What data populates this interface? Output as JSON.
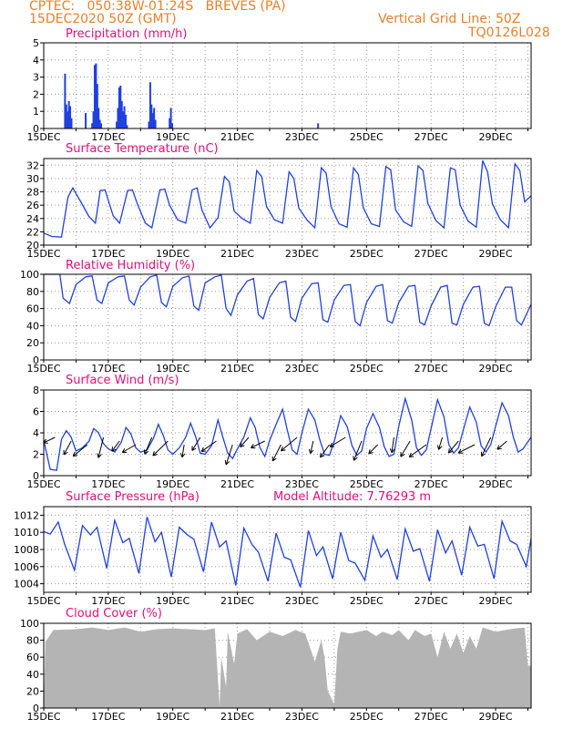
{
  "header": {
    "line1": "CPTEC:   050:38W-01:24S   BREVES (PA)",
    "line2": "15DEC2020 50Z (GMT)",
    "grid_note": "Vertical Grid Line: 50Z",
    "code": "TQ0126L028"
  },
  "colors": {
    "title": "#e0107a",
    "header": "#e8802a",
    "line": "#2040e0",
    "cloud": "#b4b4b4",
    "grid": "#9a9a9a"
  },
  "chart_data": [
    {
      "id": "precip",
      "type": "bar",
      "title": "Precipitation (mm/h)",
      "ylim": [
        0,
        5
      ],
      "yticks": [
        0,
        1,
        2,
        3,
        4,
        5
      ],
      "xticklabels": [
        "15DEC",
        "17DEC",
        "19DEC",
        "21DEC",
        "23DEC",
        "25DEC",
        "27DEC",
        "29DEC"
      ],
      "x": [
        0.66,
        0.7,
        0.74,
        0.78,
        0.82,
        0.86,
        1.3,
        1.5,
        1.54,
        1.58,
        1.62,
        1.66,
        1.7,
        1.74,
        1.78,
        2.26,
        2.3,
        2.34,
        2.38,
        2.42,
        2.46,
        2.5,
        2.54,
        2.58,
        3.26,
        3.3,
        3.34,
        3.38,
        3.42,
        3.46,
        3.9,
        3.94,
        3.98,
        8.5
      ],
      "values": [
        3.2,
        1.4,
        1.0,
        1.6,
        1.3,
        0.6,
        0.9,
        0.3,
        1.0,
        3.7,
        3.8,
        2.6,
        1.2,
        0.5,
        0.3,
        0.4,
        1.2,
        2.4,
        2.5,
        1.6,
        1.0,
        1.3,
        0.8,
        0.2,
        0.4,
        2.7,
        1.4,
        0.9,
        1.2,
        0.5,
        0.6,
        1.2,
        0.3,
        0.3
      ]
    },
    {
      "id": "temp",
      "type": "line",
      "title": "Surface Temperature (nC)",
      "ylim": [
        20,
        33
      ],
      "yticks": [
        20,
        22,
        24,
        26,
        28,
        30,
        32
      ],
      "xticklabels": [
        "15DEC",
        "17DEC",
        "19DEC",
        "21DEC",
        "23DEC",
        "25DEC",
        "27DEC",
        "29DEC"
      ],
      "x": [
        0.0,
        0.25,
        0.55,
        0.75,
        0.9,
        1.15,
        1.4,
        1.6,
        1.75,
        1.9,
        2.15,
        2.35,
        2.6,
        2.75,
        2.9,
        3.15,
        3.35,
        3.6,
        3.75,
        3.9,
        4.15,
        4.4,
        4.6,
        4.75,
        4.9,
        5.15,
        5.4,
        5.6,
        5.75,
        5.9,
        6.15,
        6.4,
        6.6,
        6.75,
        6.9,
        7.15,
        7.4,
        7.6,
        7.75,
        7.9,
        8.15,
        8.4,
        8.6,
        8.75,
        8.9,
        9.15,
        9.4,
        9.6,
        9.75,
        9.9,
        10.15,
        10.4,
        10.6,
        10.75,
        10.9,
        11.15,
        11.4,
        11.6,
        11.75,
        11.9,
        12.15,
        12.4,
        12.6,
        12.75,
        12.9,
        13.15,
        13.4,
        13.6,
        13.75,
        13.9,
        14.15,
        14.4,
        14.6,
        14.75,
        14.9,
        15.1
      ],
      "values": [
        21.8,
        21.3,
        21.2,
        27.2,
        28.6,
        26.5,
        24.3,
        23.3,
        28.2,
        28.3,
        24.4,
        23.3,
        28.2,
        28.3,
        26.2,
        23.3,
        22.6,
        28.3,
        28.4,
        26.0,
        23.8,
        23.3,
        28.3,
        28.6,
        25.3,
        22.6,
        24.1,
        30.3,
        29.5,
        25.1,
        24.0,
        23.3,
        31.2,
        30.3,
        25.8,
        23.8,
        23.3,
        31.0,
        30.0,
        25.6,
        23.8,
        22.6,
        31.6,
        30.8,
        25.8,
        23.2,
        22.7,
        31.6,
        30.6,
        25.6,
        23.2,
        22.8,
        31.8,
        31.3,
        25.3,
        23.5,
        22.8,
        31.9,
        31.2,
        26.3,
        23.7,
        22.6,
        31.6,
        31.3,
        26.0,
        23.6,
        22.7,
        32.7,
        31.0,
        26.2,
        23.8,
        22.6,
        32.2,
        31.2,
        26.5,
        27.4
      ]
    },
    {
      "id": "rh",
      "type": "line",
      "title": "Relative Humidity (%)",
      "ylim": [
        0,
        100
      ],
      "yticks": [
        0,
        20,
        40,
        60,
        80,
        100
      ],
      "xticklabels": [
        "15DEC",
        "17DEC",
        "19DEC",
        "21DEC",
        "23DEC",
        "25DEC",
        "27DEC",
        "29DEC"
      ],
      "x": [
        0.0,
        0.25,
        0.5,
        0.6,
        0.8,
        1.0,
        1.3,
        1.5,
        1.65,
        1.8,
        2.0,
        2.3,
        2.5,
        2.65,
        2.8,
        3.0,
        3.3,
        3.5,
        3.65,
        3.8,
        4.0,
        4.3,
        4.5,
        4.65,
        4.8,
        5.0,
        5.3,
        5.5,
        5.65,
        5.8,
        6.0,
        6.3,
        6.5,
        6.65,
        6.8,
        7.0,
        7.3,
        7.5,
        7.65,
        7.8,
        8.0,
        8.3,
        8.5,
        8.65,
        8.8,
        9.0,
        9.3,
        9.5,
        9.65,
        9.8,
        10.0,
        10.3,
        10.5,
        10.65,
        10.8,
        11.0,
        11.3,
        11.5,
        11.65,
        11.8,
        12.0,
        12.3,
        12.5,
        12.65,
        12.8,
        13.0,
        13.3,
        13.5,
        13.65,
        13.8,
        14.0,
        14.3,
        14.5,
        14.65,
        14.8,
        15.1
      ],
      "values": [
        100,
        100,
        100,
        72,
        66,
        88,
        97,
        98,
        70,
        66,
        90,
        97,
        98,
        70,
        64,
        85,
        97,
        99,
        67,
        62,
        86,
        96,
        98,
        63,
        58,
        90,
        97,
        99,
        60,
        52,
        76,
        92,
        95,
        53,
        48,
        73,
        90,
        92,
        50,
        45,
        72,
        89,
        90,
        47,
        44,
        70,
        87,
        88,
        45,
        40,
        67,
        86,
        88,
        46,
        43,
        67,
        86,
        87,
        44,
        41,
        63,
        85,
        87,
        43,
        41,
        65,
        85,
        86,
        43,
        40,
        62,
        85,
        85,
        46,
        41,
        65
      ]
    },
    {
      "id": "wind",
      "type": "line",
      "title": "Surface Wind (m/s)",
      "ylim": [
        0,
        8
      ],
      "yticks": [
        0,
        2,
        4,
        6,
        8
      ],
      "xticklabels": [
        "15DEC",
        "17DEC",
        "19DEC",
        "21DEC",
        "23DEC",
        "25DEC",
        "27DEC",
        "29DEC"
      ],
      "x": [
        0.0,
        0.2,
        0.4,
        0.55,
        0.7,
        0.85,
        1.0,
        1.2,
        1.4,
        1.55,
        1.7,
        1.85,
        2.0,
        2.2,
        2.4,
        2.55,
        2.7,
        2.85,
        3.0,
        3.2,
        3.4,
        3.55,
        3.7,
        3.85,
        4.0,
        4.2,
        4.4,
        4.55,
        4.7,
        4.85,
        5.0,
        5.2,
        5.4,
        5.55,
        5.7,
        5.85,
        6.0,
        6.2,
        6.4,
        6.55,
        6.7,
        6.85,
        7.0,
        7.2,
        7.4,
        7.55,
        7.7,
        7.85,
        8.0,
        8.2,
        8.4,
        8.55,
        8.7,
        8.85,
        9.0,
        9.2,
        9.4,
        9.55,
        9.7,
        9.85,
        10.0,
        10.2,
        10.4,
        10.55,
        10.7,
        10.85,
        11.0,
        11.2,
        11.4,
        11.55,
        11.7,
        11.85,
        12.0,
        12.2,
        12.4,
        12.55,
        12.7,
        12.85,
        13.0,
        13.2,
        13.4,
        13.55,
        13.7,
        13.85,
        14.0,
        14.2,
        14.4,
        14.55,
        14.7,
        14.85,
        15.1
      ],
      "values": [
        3.3,
        0.6,
        0.5,
        3.4,
        4.2,
        3.6,
        2.3,
        2.6,
        3.2,
        4.4,
        4.0,
        3.0,
        2.5,
        2.2,
        3.1,
        4.5,
        3.9,
        2.6,
        2.2,
        2.4,
        3.5,
        4.8,
        3.8,
        2.4,
        2.0,
        2.6,
        3.6,
        4.9,
        3.7,
        2.1,
        2.0,
        2.8,
        5.2,
        3.6,
        2.1,
        1.6,
        2.5,
        3.6,
        5.4,
        4.5,
        2.6,
        1.8,
        3.3,
        4.8,
        6.2,
        4.2,
        2.4,
        2.0,
        4.0,
        6.2,
        5.2,
        3.4,
        2.0,
        1.9,
        3.2,
        5.6,
        4.6,
        2.8,
        1.9,
        2.3,
        4.4,
        5.8,
        4.5,
        2.7,
        1.8,
        2.0,
        4.6,
        7.2,
        5.2,
        2.6,
        1.9,
        2.4,
        4.4,
        7.1,
        5.5,
        2.9,
        2.1,
        2.6,
        4.3,
        6.4,
        5.0,
        2.8,
        2.2,
        2.9,
        4.6,
        6.8,
        5.6,
        3.6,
        2.2,
        2.5,
        3.6
      ]
    },
    {
      "id": "pres",
      "type": "line",
      "title": "Surface Pressure (hPa)",
      "annotation": "Model Altitude: 7.76293 m",
      "ylim": [
        1003,
        1013
      ],
      "yticks": [
        1004,
        1006,
        1008,
        1010,
        1012
      ],
      "xticklabels": [
        "15DEC",
        "17DEC",
        "19DEC",
        "21DEC",
        "23DEC",
        "25DEC",
        "27DEC",
        "29DEC"
      ],
      "x": [
        0.0,
        0.2,
        0.45,
        0.65,
        0.95,
        1.2,
        1.45,
        1.65,
        1.95,
        2.2,
        2.45,
        2.65,
        2.95,
        3.2,
        3.45,
        3.65,
        3.95,
        4.2,
        4.45,
        4.65,
        4.95,
        5.2,
        5.45,
        5.65,
        5.95,
        6.2,
        6.45,
        6.65,
        6.95,
        7.2,
        7.45,
        7.65,
        7.95,
        8.2,
        8.45,
        8.65,
        8.95,
        9.2,
        9.45,
        9.65,
        9.95,
        10.2,
        10.45,
        10.65,
        10.95,
        11.2,
        11.45,
        11.65,
        11.95,
        12.2,
        12.45,
        12.65,
        12.95,
        13.2,
        13.45,
        13.65,
        13.95,
        14.2,
        14.45,
        14.65,
        14.95,
        15.1
      ],
      "values": [
        1010.1,
        1009.8,
        1011.2,
        1008.6,
        1005.6,
        1010.8,
        1009.7,
        1010.6,
        1005.8,
        1011.4,
        1008.8,
        1009.3,
        1005.2,
        1011.8,
        1008.9,
        1010.0,
        1004.8,
        1010.6,
        1009.7,
        1009.2,
        1005.4,
        1011.2,
        1008.3,
        1009.0,
        1003.8,
        1010.5,
        1008.6,
        1007.7,
        1004.3,
        1009.9,
        1007.1,
        1006.8,
        1003.6,
        1010.2,
        1007.3,
        1008.3,
        1004.6,
        1010.0,
        1006.7,
        1006.4,
        1004.4,
        1009.6,
        1007.1,
        1008.0,
        1004.5,
        1010.4,
        1007.8,
        1008.1,
        1004.3,
        1010.3,
        1007.6,
        1009.0,
        1005.0,
        1010.6,
        1008.4,
        1008.6,
        1004.6,
        1011.3,
        1009.0,
        1008.6,
        1006.0,
        1009.3
      ]
    },
    {
      "id": "cloud",
      "type": "area",
      "title": "Cloud Cover (%)",
      "ylim": [
        0,
        100
      ],
      "yticks": [
        0,
        20,
        40,
        60,
        80,
        100
      ],
      "xticklabels": [
        "15DEC",
        "17DEC",
        "19DEC",
        "21DEC",
        "23DEC",
        "25DEC",
        "27DEC",
        "29DEC"
      ],
      "x": [
        0.0,
        0.05,
        0.3,
        1.0,
        1.5,
        2.0,
        2.5,
        3.0,
        3.5,
        4.0,
        4.5,
        5.0,
        5.3,
        5.45,
        5.5,
        5.65,
        5.7,
        5.9,
        6.0,
        6.3,
        6.6,
        7.0,
        7.4,
        7.8,
        8.1,
        8.4,
        8.6,
        8.7,
        8.8,
        9.0,
        9.1,
        9.2,
        9.5,
        10.0,
        10.3,
        10.5,
        10.8,
        11.0,
        11.3,
        11.5,
        11.8,
        12.0,
        12.2,
        12.4,
        12.6,
        12.8,
        13.0,
        13.2,
        13.4,
        13.6,
        14.0,
        14.3,
        14.6,
        14.9,
        15.0,
        15.1
      ],
      "values": [
        0,
        78,
        92,
        93,
        95,
        92,
        95,
        90,
        93,
        94,
        93,
        92,
        94,
        2,
        60,
        25,
        90,
        52,
        88,
        93,
        80,
        90,
        85,
        92,
        88,
        55,
        80,
        60,
        20,
        5,
        70,
        90,
        88,
        92,
        85,
        90,
        86,
        92,
        80,
        92,
        85,
        88,
        60,
        90,
        70,
        88,
        65,
        85,
        70,
        95,
        90,
        92,
        94,
        95,
        50,
        50
      ]
    }
  ]
}
